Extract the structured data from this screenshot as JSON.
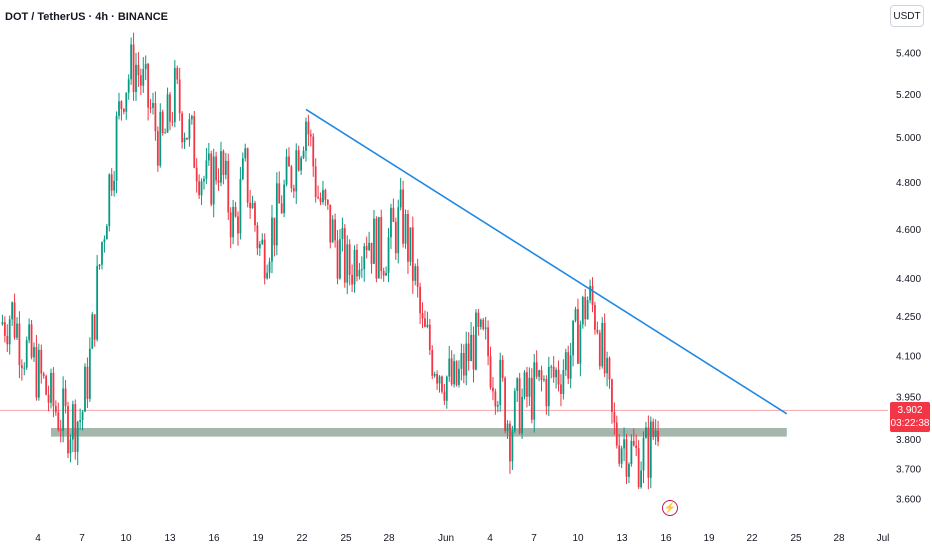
{
  "header": {
    "title": "DOT / TetherUS · 4h · BINANCE",
    "currency_label": "USDT"
  },
  "colors": {
    "up": "#089981",
    "down": "#f23645",
    "trendline": "#1e88e5",
    "support_zone": "#a5b7ad",
    "price_line": "#f7a8ae",
    "text": "#131722"
  },
  "icons": {
    "event": "lightning-icon"
  },
  "current_price": {
    "value": "3.902",
    "countdown": "03:22:38"
  },
  "chart_data": {
    "type": "candlestick",
    "title": "DOT / TetherUS · 4h · BINANCE",
    "y_scale": "log",
    "ylim": [
      3.55,
      5.55
    ],
    "y_ticks": [
      "5.400",
      "5.200",
      "5.000",
      "4.800",
      "4.600",
      "4.400",
      "4.250",
      "4.100",
      "3.950",
      "3.800",
      "3.700",
      "3.600"
    ],
    "x_ticks": [
      "4",
      "7",
      "10",
      "13",
      "16",
      "19",
      "22",
      "25",
      "28",
      "Jun",
      "4",
      "7",
      "10",
      "13",
      "16",
      "19",
      "22",
      "25",
      "28",
      "Jul"
    ],
    "x_range_days": [
      "May 2",
      "Jul 1"
    ],
    "anchors": [
      {
        "day": "May 2.0",
        "price": 4.22
      },
      {
        "day": "May 2.8",
        "price": 4.27
      },
      {
        "day": "May 3.5",
        "price": 4.15
      },
      {
        "day": "May 4.5",
        "price": 4.05
      },
      {
        "day": "May 5.5",
        "price": 3.93
      },
      {
        "day": "May 6.5",
        "price": 3.86
      },
      {
        "day": "May 7.6",
        "price": 3.88
      },
      {
        "day": "May 8.2",
        "price": 4.1
      },
      {
        "day": "May 9.0",
        "price": 4.55
      },
      {
        "day": "May 9.6",
        "price": 4.85
      },
      {
        "day": "May 10.5",
        "price": 5.25
      },
      {
        "day": "May 11.3",
        "price": 5.35
      },
      {
        "day": "May 12.2",
        "price": 5.15
      },
      {
        "day": "May 13.1",
        "price": 4.95
      },
      {
        "day": "May 14.0",
        "price": 5.2
      },
      {
        "day": "May 14.8",
        "price": 5.05
      },
      {
        "day": "May 16.2",
        "price": 4.78
      },
      {
        "day": "May 17.0",
        "price": 4.9
      },
      {
        "day": "May 18.1",
        "price": 4.6
      },
      {
        "day": "May 18.8",
        "price": 4.85
      },
      {
        "day": "May 19.9",
        "price": 4.5
      },
      {
        "day": "May 20.8",
        "price": 4.62
      },
      {
        "day": "May 22.0",
        "price": 4.85
      },
      {
        "day": "May 23.0",
        "price": 5.1
      },
      {
        "day": "May 23.8",
        "price": 4.75
      },
      {
        "day": "May 24.7",
        "price": 4.6
      },
      {
        "day": "May 25.9",
        "price": 4.42
      },
      {
        "day": "May 27.0",
        "price": 4.6
      },
      {
        "day": "May 28.2",
        "price": 4.5
      },
      {
        "day": "May 29.6",
        "price": 4.65
      },
      {
        "day": "May 30.4",
        "price": 4.42
      },
      {
        "day": "May 31.0",
        "price": 4.18
      },
      {
        "day": "Jun 1.3",
        "price": 4.05
      },
      {
        "day": "Jun 2.2",
        "price": 3.98
      },
      {
        "day": "Jun 3.5",
        "price": 4.15
      },
      {
        "day": "Jun 4.4",
        "price": 4.12
      },
      {
        "day": "Jun 5.4",
        "price": 3.98
      },
      {
        "day": "Jun 6.0",
        "price": 3.84
      },
      {
        "day": "Jun 6.6",
        "price": 3.92
      },
      {
        "day": "Jun 7.8",
        "price": 3.98
      },
      {
        "day": "Jun 9.0",
        "price": 4.02
      },
      {
        "day": "Jun 10.3",
        "price": 4.12
      },
      {
        "day": "Jun 11.3",
        "price": 4.32
      },
      {
        "day": "Jun 12.0",
        "price": 4.25
      },
      {
        "day": "Jun 12.6",
        "price": 4.0
      },
      {
        "day": "Jun 13.1",
        "price": 3.82
      },
      {
        "day": "Jun 13.8",
        "price": 3.8
      },
      {
        "day": "Jun 14.6",
        "price": 3.74
      },
      {
        "day": "Jun 15.5",
        "price": 3.76
      },
      {
        "day": "Jun 16.3",
        "price": 3.9
      }
    ],
    "trendline": {
      "start": {
        "day": "May 23.0",
        "price": 5.13
      },
      "end": {
        "day": "Jun 25.0",
        "price": 3.89
      }
    },
    "support_zone": {
      "start": "May 5.5",
      "end": "Jun 25.0",
      "price_low": 3.81,
      "price_high": 3.84
    },
    "last_price": 3.902
  }
}
